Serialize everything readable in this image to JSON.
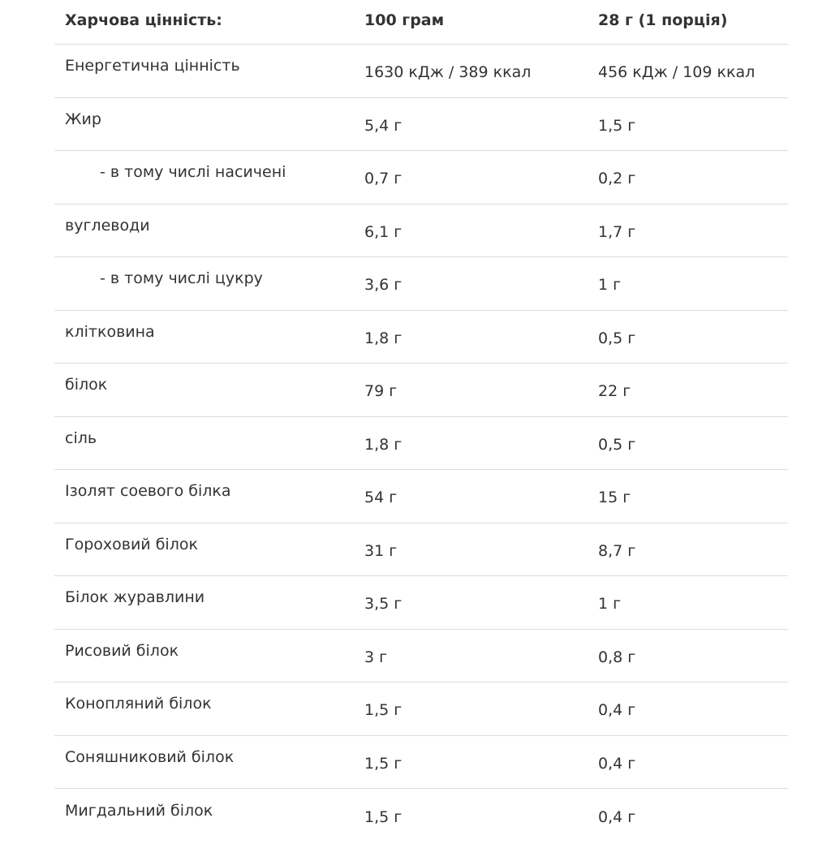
{
  "header": {
    "label": "Харчова цінність:",
    "per100": "100 грам",
    "perServing": "28 г (1 порція)"
  },
  "rows": [
    {
      "name": "Енергетична цінність",
      "per100": "1630 кДж / 389 ккал",
      "perServing": "456 кДж / 109 ккал",
      "indent": false
    },
    {
      "name": "Жир",
      "per100": "5,4 г",
      "perServing": "1,5 г",
      "indent": false
    },
    {
      "name": "- в тому числі насичені",
      "per100": "0,7 г",
      "perServing": "0,2 г",
      "indent": true
    },
    {
      "name": "вуглеводи",
      "per100": "6,1 г",
      "perServing": "1,7 г",
      "indent": false
    },
    {
      "name": "- в тому числі цукру",
      "per100": "3,6 г",
      "perServing": "1 г",
      "indent": true
    },
    {
      "name": "клітковина",
      "per100": "1,8 г",
      "perServing": "0,5 г",
      "indent": false
    },
    {
      "name": "білок",
      "per100": "79 г",
      "perServing": "22 г",
      "indent": false
    },
    {
      "name": "сіль",
      "per100": "1,8 г",
      "perServing": "0,5 г",
      "indent": false
    },
    {
      "name": "Ізолят соевого білка",
      "per100": "54 г",
      "perServing": "15 г",
      "indent": false
    },
    {
      "name": "Гороховий білок",
      "per100": "31 г",
      "perServing": "8,7 г",
      "indent": false
    },
    {
      "name": "Білок журавлини",
      "per100": "3,5 г",
      "perServing": "1 г",
      "indent": false
    },
    {
      "name": "Рисовий білок",
      "per100": "3 г",
      "perServing": "0,8 г",
      "indent": false
    },
    {
      "name": "Конопляний білок",
      "per100": "1,5 г",
      "perServing": "0,4 г",
      "indent": false
    },
    {
      "name": "Соняшниковий білок",
      "per100": "1,5 г",
      "perServing": "0,4 г",
      "indent": false
    },
    {
      "name": "Мигдальний білок",
      "per100": "1,5 г",
      "perServing": "0,4 г",
      "indent": false
    }
  ]
}
